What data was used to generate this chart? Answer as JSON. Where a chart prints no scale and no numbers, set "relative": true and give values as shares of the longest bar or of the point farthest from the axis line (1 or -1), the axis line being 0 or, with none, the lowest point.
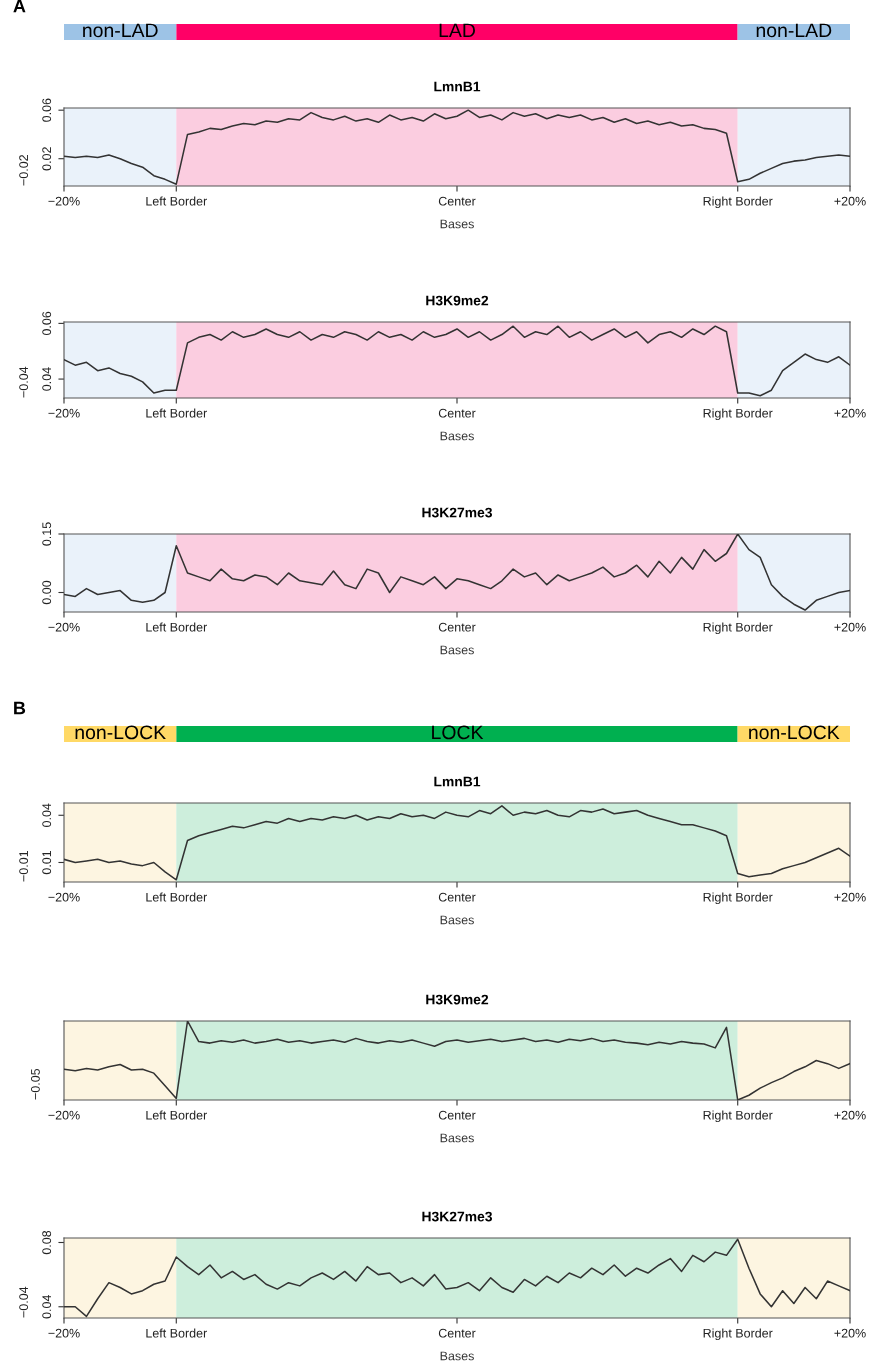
{
  "chart_data": [
    {
      "type": "bar",
      "orientation": "horizontal",
      "stacked": true,
      "relative": true,
      "annotations": [
        "A"
      ],
      "categories": [
        null
      ],
      "series": [
        {
          "name": "non-LAD",
          "color": "#9dc3e6",
          "values": [
            0.143
          ]
        },
        {
          "name": "LAD",
          "color": "#ff0066",
          "values": [
            0.714
          ]
        },
        {
          "name": "non-LAD",
          "color": "#9dc3e6",
          "values": [
            0.143
          ]
        }
      ],
      "legend": false
    },
    {
      "type": "line",
      "title": "LmnB1",
      "xlabel": "Bases",
      "annotations": [
        "−0.02"
      ],
      "categories": [
        "−20%",
        null,
        null,
        null,
        null,
        null,
        null,
        null,
        null,
        null,
        "Left Border",
        null,
        null,
        null,
        null,
        null,
        null,
        null,
        null,
        null,
        null,
        null,
        null,
        null,
        null,
        null,
        null,
        null,
        null,
        null,
        null,
        null,
        null,
        null,
        null,
        "Center",
        null,
        null,
        null,
        null,
        null,
        null,
        null,
        null,
        null,
        null,
        null,
        null,
        null,
        null,
        null,
        null,
        null,
        null,
        null,
        null,
        null,
        null,
        null,
        null,
        "Right Border",
        null,
        null,
        null,
        null,
        null,
        null,
        null,
        null,
        null,
        "+20%"
      ],
      "series": [
        {
          "color": "#333333",
          "values": [
            0.022,
            0.021,
            0.022,
            0.021,
            0.023,
            0.02,
            0.016,
            0.013,
            0.006,
            0.003,
            -0.001,
            0.04,
            0.042,
            0.045,
            0.044,
            0.047,
            0.049,
            0.048,
            0.051,
            0.05,
            0.053,
            0.052,
            0.058,
            0.054,
            0.052,
            0.055,
            0.051,
            0.053,
            0.05,
            0.056,
            0.052,
            0.054,
            0.051,
            0.057,
            0.053,
            0.055,
            0.06,
            0.054,
            0.056,
            0.052,
            0.058,
            0.055,
            0.057,
            0.053,
            0.056,
            0.054,
            0.056,
            0.052,
            0.054,
            0.05,
            0.053,
            0.049,
            0.051,
            0.048,
            0.05,
            0.047,
            0.048,
            0.045,
            0.044,
            0.041,
            0.001,
            0.003,
            0.008,
            0.012,
            0.016,
            0.018,
            0.019,
            0.021,
            0.022,
            0.023,
            0.022
          ]
        }
      ],
      "ylim": [
        -0.0025,
        0.0618
      ],
      "yticks": [
        0.06,
        0.02
      ],
      "bands": [
        {
          "axis": "x",
          "from": "−20%",
          "to": "Left Border",
          "color": "#eaf2fa"
        },
        {
          "axis": "x",
          "from": "Left Border",
          "to": "Right Border",
          "color": "#fbcde0"
        },
        {
          "axis": "x",
          "from": "Right Border",
          "to": "+20%",
          "color": "#eaf2fa"
        }
      ],
      "grid": false,
      "legend": false
    },
    {
      "type": "line",
      "title": "H3K9me2",
      "xlabel": "Bases",
      "annotations": [
        "−0.04"
      ],
      "categories": [
        "−20%",
        null,
        null,
        null,
        null,
        null,
        null,
        null,
        null,
        null,
        "Left Border",
        null,
        null,
        null,
        null,
        null,
        null,
        null,
        null,
        null,
        null,
        null,
        null,
        null,
        null,
        null,
        null,
        null,
        null,
        null,
        null,
        null,
        null,
        null,
        null,
        "Center",
        null,
        null,
        null,
        null,
        null,
        null,
        null,
        null,
        null,
        null,
        null,
        null,
        null,
        null,
        null,
        null,
        null,
        null,
        null,
        null,
        null,
        null,
        null,
        null,
        "Right Border",
        null,
        null,
        null,
        null,
        null,
        null,
        null,
        null,
        null,
        "+20%"
      ],
      "series": [
        {
          "color": "#333333",
          "values": [
            0.047,
            0.045,
            0.046,
            0.043,
            0.044,
            0.042,
            0.041,
            0.039,
            0.035,
            0.036,
            0.036,
            0.053,
            0.055,
            0.056,
            0.054,
            0.057,
            0.055,
            0.056,
            0.058,
            0.056,
            0.055,
            0.057,
            0.054,
            0.056,
            0.055,
            0.057,
            0.056,
            0.054,
            0.057,
            0.055,
            0.056,
            0.054,
            0.057,
            0.055,
            0.056,
            0.058,
            0.055,
            0.057,
            0.054,
            0.056,
            0.059,
            0.055,
            0.057,
            0.056,
            0.059,
            0.055,
            0.057,
            0.054,
            0.056,
            0.058,
            0.055,
            0.057,
            0.053,
            0.056,
            0.057,
            0.055,
            0.058,
            0.056,
            0.059,
            0.057,
            0.035,
            0.035,
            0.034,
            0.036,
            0.043,
            0.046,
            0.049,
            0.047,
            0.046,
            0.048,
            0.045
          ]
        }
      ],
      "ylim": [
        0.0332,
        0.0605
      ],
      "yticks": [
        0.06,
        0.04
      ],
      "bands": [
        {
          "axis": "x",
          "from": "−20%",
          "to": "Left Border",
          "color": "#eaf2fa"
        },
        {
          "axis": "x",
          "from": "Left Border",
          "to": "Right Border",
          "color": "#fbcde0"
        },
        {
          "axis": "x",
          "from": "Right Border",
          "to": "+20%",
          "color": "#eaf2fa"
        }
      ],
      "grid": false,
      "legend": false
    },
    {
      "type": "line",
      "title": "H3K27me3",
      "xlabel": "Bases",
      "categories": [
        "−20%",
        null,
        null,
        null,
        null,
        null,
        null,
        null,
        null,
        null,
        "Left Border",
        null,
        null,
        null,
        null,
        null,
        null,
        null,
        null,
        null,
        null,
        null,
        null,
        null,
        null,
        null,
        null,
        null,
        null,
        null,
        null,
        null,
        null,
        null,
        null,
        "Center",
        null,
        null,
        null,
        null,
        null,
        null,
        null,
        null,
        null,
        null,
        null,
        null,
        null,
        null,
        null,
        null,
        null,
        null,
        null,
        null,
        null,
        null,
        null,
        null,
        "Right Border",
        null,
        null,
        null,
        null,
        null,
        null,
        null,
        null,
        null,
        "+20%"
      ],
      "series": [
        {
          "color": "#333333",
          "values": [
            -0.005,
            -0.01,
            0.01,
            -0.005,
            0.0,
            0.005,
            -0.02,
            -0.025,
            -0.02,
            0.0,
            0.12,
            0.05,
            0.04,
            0.03,
            0.06,
            0.035,
            0.03,
            0.045,
            0.04,
            0.02,
            0.05,
            0.03,
            0.025,
            0.02,
            0.055,
            0.02,
            0.01,
            0.06,
            0.05,
            0.0,
            0.04,
            0.03,
            0.02,
            0.04,
            0.01,
            0.035,
            0.03,
            0.02,
            0.01,
            0.03,
            0.06,
            0.04,
            0.05,
            0.02,
            0.045,
            0.03,
            0.04,
            0.05,
            0.065,
            0.04,
            0.05,
            0.07,
            0.04,
            0.08,
            0.05,
            0.09,
            0.06,
            0.11,
            0.08,
            0.1,
            0.15,
            0.11,
            0.09,
            0.02,
            -0.01,
            -0.03,
            -0.045,
            -0.02,
            -0.01,
            0.0,
            0.005
          ]
        }
      ],
      "ylim": [
        -0.05,
        0.15
      ],
      "yticks": [
        0.15,
        {
          "value": 0.0,
          "label": "0.00"
        }
      ],
      "bands": [
        {
          "axis": "x",
          "from": "−20%",
          "to": "Left Border",
          "color": "#eaf2fa"
        },
        {
          "axis": "x",
          "from": "Left Border",
          "to": "Right Border",
          "color": "#fbcde0"
        },
        {
          "axis": "x",
          "from": "Right Border",
          "to": "+20%",
          "color": "#eaf2fa"
        }
      ],
      "grid": false,
      "legend": false
    },
    {
      "type": "bar",
      "orientation": "horizontal",
      "stacked": true,
      "relative": true,
      "annotations": [
        "B"
      ],
      "categories": [
        null
      ],
      "series": [
        {
          "name": "non-LOCK",
          "color": "#ffd966",
          "values": [
            0.143
          ]
        },
        {
          "name": "LOCK",
          "color": "#00b050",
          "values": [
            0.714
          ]
        },
        {
          "name": "non-LOCK",
          "color": "#ffd966",
          "values": [
            0.143
          ]
        }
      ],
      "legend": false
    },
    {
      "type": "line",
      "title": "LmnB1",
      "xlabel": "Bases",
      "annotations": [
        "−0.01"
      ],
      "categories": [
        "−20%",
        null,
        null,
        null,
        null,
        null,
        null,
        null,
        null,
        null,
        "Left Border",
        null,
        null,
        null,
        null,
        null,
        null,
        null,
        null,
        null,
        null,
        null,
        null,
        null,
        null,
        null,
        null,
        null,
        null,
        null,
        null,
        null,
        null,
        null,
        null,
        "Center",
        null,
        null,
        null,
        null,
        null,
        null,
        null,
        null,
        null,
        null,
        null,
        null,
        null,
        null,
        null,
        null,
        null,
        null,
        null,
        null,
        null,
        null,
        null,
        null,
        "Right Border",
        null,
        null,
        null,
        null,
        null,
        null,
        null,
        null,
        null,
        "+20%"
      ],
      "series": [
        {
          "color": "#333333",
          "values": [
            0.012,
            0.01,
            0.011,
            0.012,
            0.01,
            0.011,
            0.009,
            0.008,
            0.01,
            0.004,
            -0.001,
            0.024,
            0.027,
            0.029,
            0.031,
            0.033,
            0.032,
            0.034,
            0.036,
            0.035,
            0.038,
            0.036,
            0.038,
            0.037,
            0.039,
            0.038,
            0.04,
            0.037,
            0.039,
            0.038,
            0.041,
            0.039,
            0.04,
            0.038,
            0.042,
            0.04,
            0.039,
            0.043,
            0.041,
            0.046,
            0.04,
            0.042,
            0.041,
            0.043,
            0.04,
            0.039,
            0.043,
            0.042,
            0.044,
            0.041,
            0.042,
            0.043,
            0.04,
            0.038,
            0.036,
            0.034,
            0.034,
            0.032,
            0.03,
            0.027,
            0.003,
            0.001,
            0.002,
            0.003,
            0.006,
            0.008,
            0.01,
            0.013,
            0.016,
            0.019,
            0.014
          ]
        }
      ],
      "ylim": [
        -0.0024,
        0.0478
      ],
      "yticks": [
        0.04,
        0.01
      ],
      "bands": [
        {
          "axis": "x",
          "from": "−20%",
          "to": "Left Border",
          "color": "#fdf5e1"
        },
        {
          "axis": "x",
          "from": "Left Border",
          "to": "Right Border",
          "color": "#cdeedc"
        },
        {
          "axis": "x",
          "from": "Right Border",
          "to": "+20%",
          "color": "#fdf5e1"
        }
      ],
      "grid": false,
      "legend": false
    },
    {
      "type": "line",
      "title": "H3K9me2",
      "xlabel": "Bases",
      "relative": true,
      "annotations": [
        "−0.05"
      ],
      "categories": [
        "−20%",
        null,
        null,
        null,
        null,
        null,
        null,
        null,
        null,
        null,
        "Left Border",
        null,
        null,
        null,
        null,
        null,
        null,
        null,
        null,
        null,
        null,
        null,
        null,
        null,
        null,
        null,
        null,
        null,
        null,
        null,
        null,
        null,
        null,
        null,
        null,
        "Center",
        null,
        null,
        null,
        null,
        null,
        null,
        null,
        null,
        null,
        null,
        null,
        null,
        null,
        null,
        null,
        null,
        null,
        null,
        null,
        null,
        null,
        null,
        null,
        null,
        "Right Border",
        null,
        null,
        null,
        null,
        null,
        null,
        null,
        null,
        null,
        "+20%"
      ],
      "series": [
        {
          "color": "#333333",
          "values": [
            0.39,
            0.37,
            0.4,
            0.38,
            0.42,
            0.45,
            0.38,
            0.39,
            0.34,
            0.18,
            0.02,
            1.0,
            0.74,
            0.72,
            0.75,
            0.73,
            0.76,
            0.72,
            0.74,
            0.77,
            0.73,
            0.75,
            0.72,
            0.74,
            0.76,
            0.73,
            0.78,
            0.74,
            0.72,
            0.75,
            0.73,
            0.76,
            0.72,
            0.68,
            0.74,
            0.76,
            0.73,
            0.75,
            0.77,
            0.74,
            0.76,
            0.78,
            0.74,
            0.76,
            0.73,
            0.77,
            0.75,
            0.78,
            0.74,
            0.76,
            0.73,
            0.72,
            0.7,
            0.73,
            0.71,
            0.74,
            0.72,
            0.71,
            0.66,
            0.92,
            0.0,
            0.06,
            0.15,
            0.22,
            0.28,
            0.36,
            0.42,
            0.5,
            0.46,
            0.4,
            0.46
          ]
        }
      ],
      "bands": [
        {
          "axis": "x",
          "from": "−20%",
          "to": "Left Border",
          "color": "#fdf5e1"
        },
        {
          "axis": "x",
          "from": "Left Border",
          "to": "Right Border",
          "color": "#cdeedc"
        },
        {
          "axis": "x",
          "from": "Right Border",
          "to": "+20%",
          "color": "#fdf5e1"
        }
      ],
      "grid": false,
      "legend": false
    },
    {
      "type": "line",
      "title": "H3K27me3",
      "xlabel": "Bases",
      "annotations": [
        "−0.04"
      ],
      "categories": [
        "−20%",
        null,
        null,
        null,
        null,
        null,
        null,
        null,
        null,
        null,
        "Left Border",
        null,
        null,
        null,
        null,
        null,
        null,
        null,
        null,
        null,
        null,
        null,
        null,
        null,
        null,
        null,
        null,
        null,
        null,
        null,
        null,
        null,
        null,
        null,
        null,
        "Center",
        null,
        null,
        null,
        null,
        null,
        null,
        null,
        null,
        null,
        null,
        null,
        null,
        null,
        null,
        null,
        null,
        null,
        null,
        null,
        null,
        null,
        null,
        null,
        null,
        "Right Border",
        null,
        null,
        null,
        null,
        null,
        null,
        null,
        null,
        null,
        "+20%"
      ],
      "series": [
        {
          "color": "#333333",
          "values": [
            0.04,
            0.04,
            0.034,
            0.045,
            0.055,
            0.052,
            0.048,
            0.05,
            0.054,
            0.056,
            0.071,
            0.065,
            0.06,
            0.066,
            0.058,
            0.062,
            0.057,
            0.06,
            0.054,
            0.051,
            0.055,
            0.053,
            0.058,
            0.061,
            0.057,
            0.062,
            0.056,
            0.065,
            0.06,
            0.061,
            0.055,
            0.058,
            0.053,
            0.06,
            0.051,
            0.052,
            0.055,
            0.05,
            0.058,
            0.052,
            0.049,
            0.057,
            0.053,
            0.059,
            0.055,
            0.061,
            0.058,
            0.064,
            0.06,
            0.066,
            0.059,
            0.064,
            0.061,
            0.066,
            0.07,
            0.062,
            0.072,
            0.068,
            0.074,
            0.072,
            0.082,
            0.064,
            0.048,
            0.04,
            0.05,
            0.042,
            0.052,
            0.045,
            0.056,
            0.053,
            0.05
          ]
        }
      ],
      "ylim": [
        0.033,
        0.0828
      ],
      "yticks": [
        0.08,
        0.04
      ],
      "bands": [
        {
          "axis": "x",
          "from": "−20%",
          "to": "Left Border",
          "color": "#fdf5e1"
        },
        {
          "axis": "x",
          "from": "Left Border",
          "to": "Right Border",
          "color": "#cdeedc"
        },
        {
          "axis": "x",
          "from": "Right Border",
          "to": "+20%",
          "color": "#fdf5e1"
        }
      ],
      "grid": false,
      "legend": false
    }
  ]
}
